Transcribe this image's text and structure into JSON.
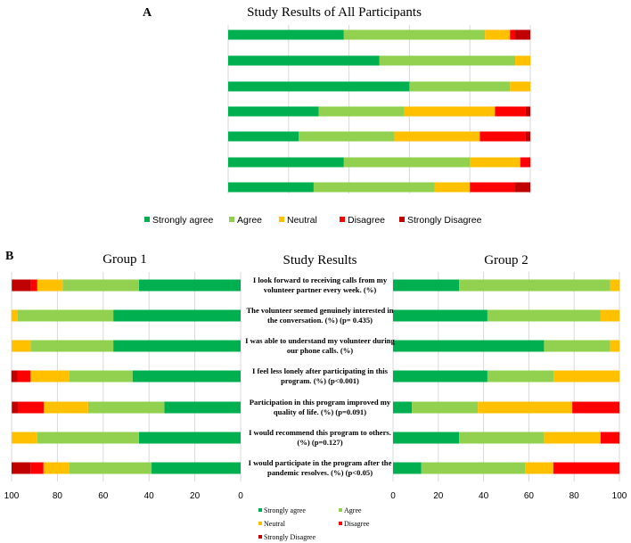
{
  "colors": {
    "Strongly agree": "#00b050",
    "Agree": "#92d050",
    "Neutral": "#ffc000",
    "Disagree": "#ff0000",
    "Strongly Disagree": "#c00000",
    "grid": "#d9d9d9"
  },
  "chart_data": [
    {
      "type": "bar",
      "stacked": "100%",
      "orientation": "horizontal",
      "panel_label": "A",
      "title": "Study Results of All Participants",
      "grid": true,
      "legend_placement": "bottom",
      "xlim": [
        0,
        100
      ],
      "categories": [
        "I look forward to receiving calls from my volunteer partner every week. (%)",
        "The volunteer seemed genuinely interested in the conversation. (%) (p= 0.435)",
        "I was able to understand my volunteer during our phone calls. (%)",
        "I feel less lonely after participating in this program. (%) (p<0.001)",
        "Participation in this program improved my quality of life. (%) (p=0.091)",
        "I would recommend this program to others. (%) (p=0.127)",
        "I would participate in the program after the pandemic resolves. (%) (p<0.05)"
      ],
      "series": [
        {
          "name": "Strongly agree",
          "values": [
            38.3,
            50.0,
            60.0,
            30.0,
            23.3,
            38.3,
            28.3
          ]
        },
        {
          "name": "Agree",
          "values": [
            46.7,
            45.0,
            33.3,
            28.3,
            31.7,
            41.7,
            40.0
          ]
        },
        {
          "name": "Neutral",
          "values": [
            8.3,
            5.0,
            6.7,
            30.0,
            28.3,
            16.7,
            11.7
          ]
        },
        {
          "name": "Disagree",
          "values": [
            1.7,
            0,
            0,
            10.0,
            15.0,
            3.3,
            15.0
          ]
        },
        {
          "name": "Strongly Disagree",
          "values": [
            5.0,
            0,
            0,
            1.7,
            1.7,
            0,
            5.0
          ]
        }
      ],
      "legend": [
        "Strongly agree",
        "Agree",
        "Neutral",
        "Disagree",
        "Strongly Disagree"
      ]
    },
    {
      "type": "bar",
      "stacked": "100%",
      "orientation": "horizontal",
      "panel_label": "B",
      "title": "Group 1",
      "xlim": [
        100,
        0
      ],
      "reversed": true,
      "grid": true,
      "x_ticks": [
        "100",
        "80",
        "60",
        "40",
        "20",
        "0"
      ],
      "series": [
        {
          "name": "Strongly agree",
          "values": [
            44.4,
            55.6,
            55.6,
            47.2,
            33.3,
            44.4,
            38.9
          ]
        },
        {
          "name": "Agree",
          "values": [
            33.3,
            41.7,
            36.1,
            27.8,
            33.3,
            44.4,
            36.1
          ]
        },
        {
          "name": "Neutral",
          "values": [
            11.1,
            2.8,
            8.3,
            16.7,
            19.4,
            11.1,
            11.1
          ]
        },
        {
          "name": "Disagree",
          "values": [
            2.8,
            0,
            0,
            5.6,
            11.1,
            0,
            5.6
          ]
        },
        {
          "name": "Strongly Disagree",
          "values": [
            8.3,
            0,
            0,
            2.8,
            2.8,
            0,
            8.3
          ]
        }
      ]
    },
    {
      "type": "bar",
      "stacked": "100%",
      "orientation": "horizontal",
      "title": "Group 2",
      "xlim": [
        0,
        100
      ],
      "grid": true,
      "x_ticks": [
        "0",
        "20",
        "40",
        "60",
        "80",
        "100"
      ],
      "series": [
        {
          "name": "Strongly agree",
          "values": [
            29.2,
            41.7,
            66.7,
            41.7,
            8.3,
            29.2,
            12.5
          ]
        },
        {
          "name": "Agree",
          "values": [
            66.7,
            50.0,
            29.2,
            29.2,
            29.2,
            37.5,
            45.8
          ]
        },
        {
          "name": "Neutral",
          "values": [
            4.2,
            8.3,
            4.2,
            29.2,
            41.7,
            25.0,
            12.5
          ]
        },
        {
          "name": "Disagree",
          "values": [
            0,
            0,
            0,
            0,
            20.8,
            8.3,
            29.2
          ]
        },
        {
          "name": "Strongly Disagree",
          "values": [
            0,
            0,
            0,
            0,
            0,
            0,
            0
          ]
        }
      ]
    }
  ],
  "middle": {
    "title": "Study Results",
    "labels": [
      [
        "I look forward to receiving calls from my",
        "volunteer partner every week. (%)"
      ],
      [
        "The volunteer seemed genuinely interested in",
        "the conversation. (%) (p= 0.435)"
      ],
      [
        "I was able to understand my volunteer during",
        "our phone calls. (%)"
      ],
      [
        "I feel less lonely after participating in this",
        "program. (%) (p<0.001)"
      ],
      [
        "Participation in this program improved my",
        "quality of life. (%) (p=0.091)"
      ],
      [
        "I would recommend this program to others.",
        "(%) (p=0.127)"
      ],
      [
        "I would participate in the program after the",
        "pandemic resolves. (%) (p<0.05)"
      ]
    ]
  }
}
